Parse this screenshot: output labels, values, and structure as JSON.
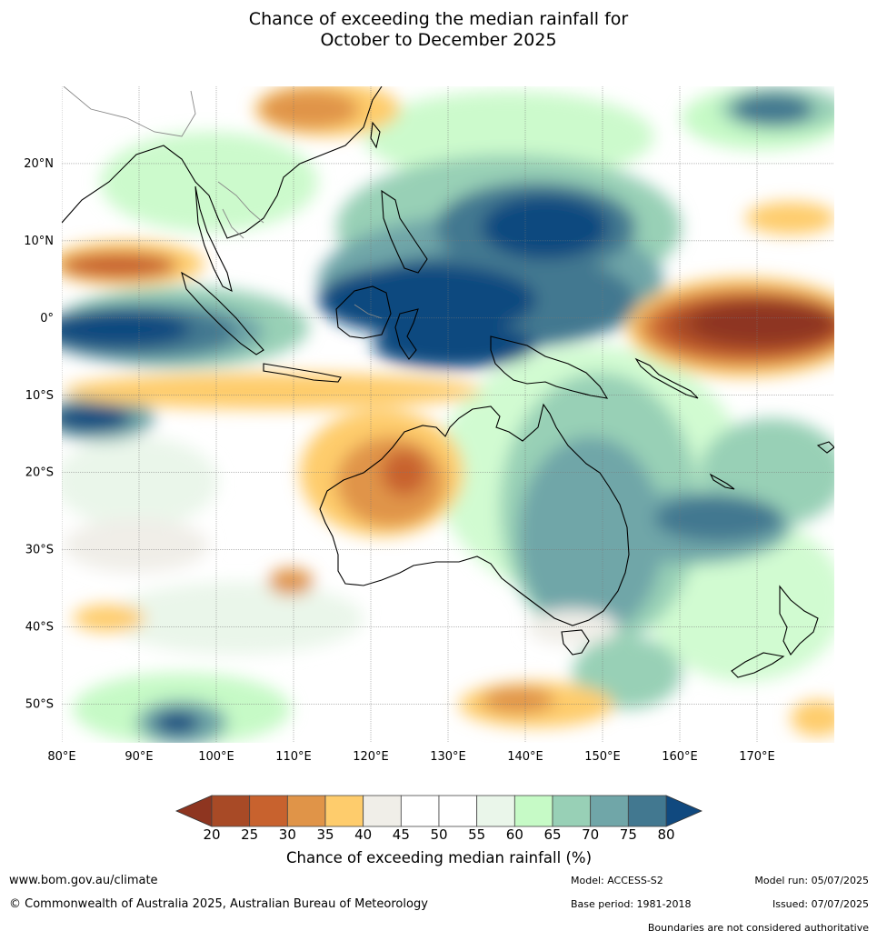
{
  "title": {
    "line1": "Chance of exceeding the median rainfall for",
    "line2": "October to December 2025"
  },
  "map": {
    "lat_labels": [
      "20°N",
      "10°N",
      "0°",
      "10°S",
      "20°S",
      "30°S",
      "40°S",
      "50°S"
    ],
    "lon_labels": [
      "80°E",
      "90°E",
      "100°E",
      "110°E",
      "120°E",
      "130°E",
      "140°E",
      "150°E",
      "160°E",
      "170°E"
    ],
    "lat_values": [
      20,
      10,
      0,
      -10,
      -20,
      -30,
      -40,
      -50
    ],
    "lon_values": [
      80,
      90,
      100,
      110,
      120,
      130,
      140,
      150,
      160,
      170
    ],
    "extent": {
      "lon_min": 80,
      "lon_max": 180,
      "lat_min": -55,
      "lat_max": 30
    },
    "gridlines": true
  },
  "colorbar": {
    "ticks": [
      "20",
      "25",
      "30",
      "35",
      "40",
      "45",
      "50",
      "55",
      "60",
      "65",
      "70",
      "75",
      "80"
    ],
    "colors": [
      "#a84a26",
      "#c8622e",
      "#e09448",
      "#fecc6c",
      "#f0eee8",
      "#ffffff",
      "#ffffff",
      "#eaf6ea",
      "#c6fac6",
      "#98d0b6",
      "#70a6a8",
      "#427890"
    ],
    "under_color": "#8e3520",
    "over_color": "#10497f",
    "label": "Chance of exceeding median rainfall (%)"
  },
  "footer": {
    "url": "www.bom.gov.au/climate",
    "copyright": "© Commonwealth of Australia 2025, Australian Bureau of Meteorology",
    "model": "Model: ACCESS-S2",
    "base_period": "Base period: 1981-2018",
    "model_run": "Model run: 05/07/2025",
    "issued": "Issued: 07/07/2025",
    "disclaimer": "Boundaries are not considered authoritative"
  }
}
